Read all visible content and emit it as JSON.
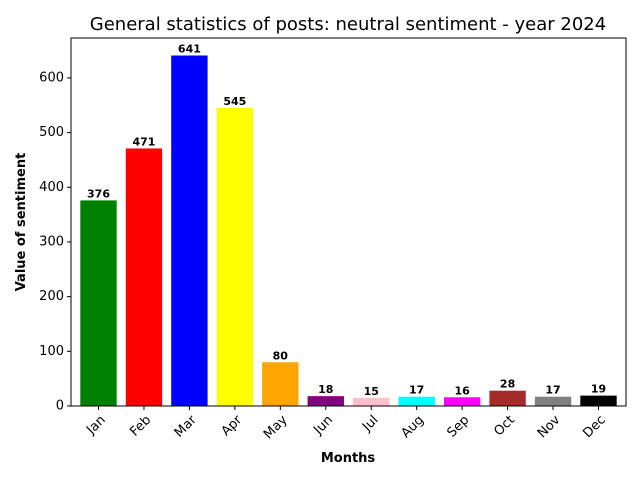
{
  "chart_data": {
    "type": "bar",
    "title": "General statistics of posts: neutral sentiment - year 2024",
    "xlabel": "Months",
    "ylabel": "Value of sentiment",
    "categories": [
      "Jan",
      "Feb",
      "Mar",
      "Apr",
      "May",
      "Jun",
      "Jul",
      "Aug",
      "Sep",
      "Oct",
      "Nov",
      "Dec"
    ],
    "values": [
      376,
      471,
      641,
      545,
      80,
      18,
      15,
      17,
      16,
      28,
      17,
      19
    ],
    "colors": [
      "#008000",
      "#ff0000",
      "#0000ff",
      "#ffff00",
      "#ffa500",
      "#800080",
      "#ffc0cb",
      "#00ffff",
      "#ff00ff",
      "#a52a2a",
      "#808080",
      "#000000"
    ],
    "ylim": [
      0,
      673
    ],
    "yticks": [
      0,
      100,
      200,
      300,
      400,
      500,
      600
    ],
    "xtick_rotation": 45,
    "grid": false,
    "legend": false,
    "data_labels": true
  }
}
